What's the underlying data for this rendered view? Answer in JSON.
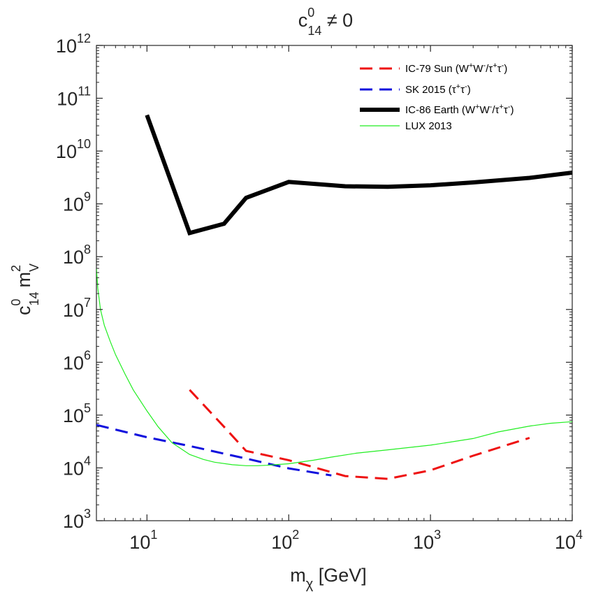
{
  "chart_data": {
    "type": "line",
    "title": "c₁₄⁰ ≠ 0",
    "title_parts": {
      "base": "c",
      "sup": "0",
      "sub": "14",
      "rest": " ≠ 0"
    },
    "xlabel": "mχ [GeV]",
    "xlabel_parts": {
      "base": "m",
      "sub": "χ",
      "rest": " [GeV]"
    },
    "ylabel": "c₁₄⁰ m_V²",
    "ylabel_parts": {
      "base": "c",
      "sup": "0",
      "sub": "14",
      "base2": "m",
      "sup2": "2",
      "sub2": "V"
    },
    "x_scale": "log",
    "y_scale": "log",
    "xlim": [
      4.4,
      10000
    ],
    "ylim": [
      1000,
      1000000000000
    ],
    "x_ticks": [
      {
        "value": 10,
        "base": "10",
        "exp": "1"
      },
      {
        "value": 100,
        "base": "10",
        "exp": "2"
      },
      {
        "value": 1000,
        "base": "10",
        "exp": "3"
      },
      {
        "value": 10000,
        "base": "10",
        "exp": "4"
      }
    ],
    "y_ticks": [
      {
        "value": 1000,
        "base": "10",
        "exp": "3"
      },
      {
        "value": 10000,
        "base": "10",
        "exp": "4"
      },
      {
        "value": 100000,
        "base": "10",
        "exp": "5"
      },
      {
        "value": 1000000,
        "base": "10",
        "exp": "6"
      },
      {
        "value": 10000000,
        "base": "10",
        "exp": "7"
      },
      {
        "value": 100000000,
        "base": "10",
        "exp": "8"
      },
      {
        "value": 1000000000,
        "base": "10",
        "exp": "9"
      },
      {
        "value": 10000000000,
        "base": "10",
        "exp": "10"
      },
      {
        "value": 100000000000,
        "base": "10",
        "exp": "11"
      },
      {
        "value": 1000000000000,
        "base": "10",
        "exp": "12"
      }
    ],
    "grid": false,
    "legend_position": "top-right",
    "series": [
      {
        "name": "IC-79 Sun (W⁺W⁻/τ⁺τ⁻)",
        "legend_parts": {
          "text": "IC-79 Sun (W",
          "sup1": "+",
          "t2": "W",
          "sup2": "-",
          "t3": "/τ",
          "sup3": "+",
          "t4": "τ",
          "sup4": "-",
          "t5": ")"
        },
        "color": "#ee1111",
        "style": "dashed",
        "width": 3,
        "x": [
          20,
          35,
          50,
          100,
          250,
          500,
          1000,
          2000,
          5000
        ],
        "y": [
          300000,
          60000,
          21000,
          14000,
          7000,
          6200,
          9000,
          17000,
          37000
        ]
      },
      {
        "name": "SK 2015 (τ⁺τ⁻)",
        "legend_parts": {
          "text": "SK 2015 (τ",
          "sup1": "+",
          "t2": "τ",
          "sup2": "-",
          "t3": ")"
        },
        "color": "#1111dd",
        "style": "dashed",
        "width": 3,
        "x": [
          4.4,
          10,
          20,
          50,
          100,
          200
        ],
        "y": [
          65000,
          38000,
          26000,
          15000,
          9800,
          7200
        ]
      },
      {
        "name": "IC-86 Earth (W⁺W⁻/τ⁺τ⁻)",
        "legend_parts": {
          "text": "IC-86 Earth (W",
          "sup1": "+",
          "t2": "W",
          "sup2": "-",
          "t3": "/τ",
          "sup3": "+",
          "t4": "τ",
          "sup4": "-",
          "t5": ")"
        },
        "color": "#000000",
        "style": "solid",
        "width": 6,
        "x": [
          10,
          20,
          35,
          50,
          100,
          250,
          500,
          1000,
          2000,
          5000,
          10000
        ],
        "y": [
          48000000000,
          280000000,
          420000000,
          1300000000,
          2600000000,
          2150000000,
          2100000000,
          2250000000,
          2550000000,
          3100000000,
          3900000000
        ]
      },
      {
        "name": "LUX 2013",
        "legend_parts": {
          "text": "LUX 2013"
        },
        "color": "#22ee22",
        "style": "solid",
        "width": 1.2,
        "x": [
          4.4,
          4.5,
          4.7,
          5,
          5.5,
          6,
          7,
          8,
          10,
          12,
          15,
          20,
          25,
          30,
          40,
          50,
          60,
          70,
          80,
          100,
          150,
          200,
          300,
          500,
          1000,
          2000,
          3000,
          5000,
          7000,
          10000
        ],
        "y": [
          60000000,
          25000000,
          10000000,
          5000000,
          2500000,
          1400000,
          600000,
          300000,
          120000,
          60000,
          30000,
          18000,
          14500,
          12800,
          11500,
          11000,
          11000,
          11200,
          11500,
          12000,
          14000,
          16000,
          19000,
          22000,
          27000,
          36000,
          48000,
          62000,
          70000,
          75000
        ]
      }
    ]
  }
}
